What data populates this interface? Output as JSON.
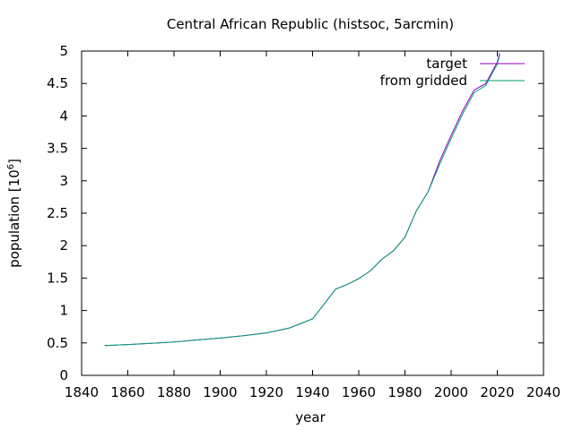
{
  "chart_data": {
    "type": "line",
    "title": "Central African Republic (histsoc, 5arcmin)",
    "xlabel": "year",
    "ylabel": "population [10",
    "ylabel_exponent": "6",
    "ylabel_suffix": "]",
    "xlim": [
      1840,
      2040
    ],
    "ylim": [
      0,
      5
    ],
    "x_ticks": [
      1840,
      1860,
      1880,
      1900,
      1920,
      1940,
      1960,
      1980,
      2000,
      2020,
      2040
    ],
    "y_ticks": [
      0,
      0.5,
      1,
      1.5,
      2,
      2.5,
      3,
      3.5,
      4,
      4.5,
      5
    ],
    "y_tick_labels": [
      "0",
      "0.5",
      "1",
      "1.5",
      "2",
      "2.5",
      "3",
      "3.5",
      "4",
      "4.5",
      "5"
    ],
    "grid": false,
    "legend_position": "top-right",
    "series": [
      {
        "name": "target",
        "color": "#9400d3",
        "x": [
          1850,
          1860,
          1870,
          1880,
          1890,
          1900,
          1910,
          1920,
          1930,
          1940,
          1945,
          1950,
          1955,
          1960,
          1965,
          1970,
          1975,
          1980,
          1985,
          1990,
          1995,
          2000,
          2005,
          2010,
          2015,
          2020,
          2021
        ],
        "y": [
          0.46,
          0.475,
          0.495,
          0.515,
          0.545,
          0.575,
          0.61,
          0.655,
          0.73,
          0.87,
          1.1,
          1.33,
          1.4,
          1.49,
          1.61,
          1.79,
          1.92,
          2.13,
          2.54,
          2.83,
          3.3,
          3.7,
          4.08,
          4.4,
          4.5,
          4.83,
          4.97
        ]
      },
      {
        "name": "from gridded",
        "color": "#009e73",
        "x": [
          1850,
          1860,
          1870,
          1880,
          1890,
          1900,
          1910,
          1920,
          1930,
          1940,
          1945,
          1950,
          1955,
          1960,
          1965,
          1970,
          1975,
          1980,
          1985,
          1990,
          1995,
          2000,
          2005,
          2010,
          2015,
          2020,
          2021
        ],
        "y": [
          0.46,
          0.475,
          0.495,
          0.515,
          0.545,
          0.575,
          0.61,
          0.655,
          0.73,
          0.87,
          1.1,
          1.33,
          1.4,
          1.49,
          1.61,
          1.79,
          1.92,
          2.13,
          2.54,
          2.83,
          3.25,
          3.65,
          4.03,
          4.36,
          4.47,
          4.8,
          4.94
        ]
      }
    ]
  }
}
